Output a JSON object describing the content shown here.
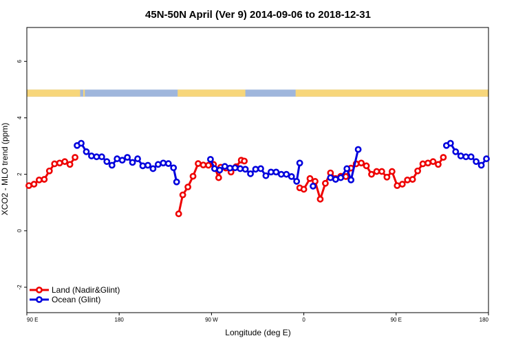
{
  "chart_data": {
    "type": "line",
    "title": "45N-50N April (Ver 9)   2014-09-06 to 2018-12-31",
    "xlabel": "Longitude (deg E)",
    "ylabel": "XCO2 - MLO trend (ppm)",
    "x_tick_labels": [
      "90 E",
      "180",
      "90 W",
      "0",
      "90 E",
      "180"
    ],
    "x_tick_values": [
      90,
      180,
      270,
      360,
      450,
      540
    ],
    "y_tick_values": [
      -2,
      0,
      2,
      4,
      6
    ],
    "y_tick_labels": [
      "-2",
      "0",
      "2",
      "4",
      "6"
    ],
    "xlim": [
      90,
      540
    ],
    "ylim": [
      -2.9,
      7.2
    ],
    "grid": false,
    "legend_position": "bottom-left",
    "colors": {
      "land": "#ee0000",
      "ocean": "#0000dd",
      "map_land": "#f7d67a",
      "map_ocean": "#9fb6dc"
    },
    "map_strip": {
      "y_range": [
        4.75,
        5.0
      ],
      "land_segments": [
        [
          90,
          142
        ],
        [
          145,
          146.5
        ],
        [
          237,
          303
        ],
        [
          352,
          540
        ]
      ]
    },
    "series": [
      {
        "name": "Land (Nadir&Glint)",
        "color": "#ee0000",
        "segments": [
          [
            [
              92,
              1.6
            ],
            [
              97,
              1.65
            ],
            [
              102,
              1.8
            ],
            [
              107,
              1.82
            ],
            [
              112,
              2.12
            ],
            [
              117,
              2.37
            ],
            [
              122,
              2.4
            ],
            [
              127,
              2.45
            ],
            [
              132,
              2.35
            ],
            [
              137,
              2.6
            ]
          ],
          [
            [
              238,
              0.6
            ],
            [
              242,
              1.27
            ],
            [
              247,
              1.55
            ],
            [
              252,
              1.93
            ],
            [
              257,
              2.38
            ],
            [
              262,
              2.33
            ],
            [
              267,
              2.32
            ],
            [
              272,
              2.35
            ],
            [
              277,
              1.88
            ],
            [
              279,
              2.25
            ],
            [
              284,
              2.22
            ],
            [
              289,
              2.08
            ],
            [
              294,
              2.27
            ],
            [
              299,
              2.5
            ],
            [
              302,
              2.47
            ]
          ],
          [
            [
              356,
              1.52
            ],
            [
              360,
              1.47
            ],
            [
              366,
              1.85
            ],
            [
              371,
              1.75
            ],
            [
              376,
              1.12
            ],
            [
              381,
              1.68
            ],
            [
              386,
              2.05
            ],
            [
              391,
              1.85
            ],
            [
              396,
              1.93
            ],
            [
              401,
              1.92
            ],
            [
              406,
              2.22
            ],
            [
              411,
              2.37
            ],
            [
              416,
              2.4
            ],
            [
              421,
              2.3
            ],
            [
              426,
              2.0
            ],
            [
              431,
              2.1
            ],
            [
              436,
              2.1
            ],
            [
              441,
              1.9
            ],
            [
              446,
              2.1
            ],
            [
              451,
              1.6
            ],
            [
              456,
              1.65
            ],
            [
              461,
              1.8
            ],
            [
              466,
              1.82
            ],
            [
              471,
              2.12
            ],
            [
              476,
              2.37
            ],
            [
              481,
              2.4
            ],
            [
              486,
              2.45
            ],
            [
              491,
              2.35
            ],
            [
              496,
              2.6
            ]
          ]
        ]
      },
      {
        "name": "Ocean (Glint)",
        "color": "#0000dd",
        "segments": [
          [
            [
              139,
              3.02
            ],
            [
              143,
              3.1
            ],
            [
              148,
              2.8
            ],
            [
              153,
              2.65
            ],
            [
              158,
              2.62
            ],
            [
              163,
              2.62
            ],
            [
              168,
              2.45
            ],
            [
              173,
              2.32
            ],
            [
              178,
              2.55
            ],
            [
              183,
              2.5
            ],
            [
              188,
              2.6
            ],
            [
              193,
              2.42
            ],
            [
              198,
              2.55
            ],
            [
              203,
              2.3
            ],
            [
              208,
              2.32
            ],
            [
              213,
              2.2
            ],
            [
              218,
              2.35
            ],
            [
              223,
              2.4
            ],
            [
              228,
              2.38
            ],
            [
              233,
              2.23
            ],
            [
              236,
              1.73
            ]
          ],
          [
            [
              269,
              2.53
            ],
            [
              273,
              2.2
            ],
            [
              278,
              2.15
            ],
            [
              283,
              2.28
            ],
            [
              288,
              2.22
            ],
            [
              293,
              2.23
            ],
            [
              298,
              2.2
            ],
            [
              303,
              2.18
            ],
            [
              308,
              2.02
            ],
            [
              313,
              2.18
            ],
            [
              318,
              2.2
            ],
            [
              323,
              1.95
            ],
            [
              328,
              2.08
            ],
            [
              333,
              2.08
            ],
            [
              338,
              2.0
            ],
            [
              343,
              2.0
            ],
            [
              348,
              1.92
            ],
            [
              353,
              1.75
            ],
            [
              356,
              2.4
            ]
          ],
          [
            [
              369,
              1.58
            ]
          ],
          [
            [
              386,
              1.88
            ],
            [
              391,
              1.82
            ],
            [
              396,
              1.88
            ],
            [
              402,
              2.2
            ],
            [
              406,
              1.8
            ],
            [
              413,
              2.88
            ]
          ],
          [
            [
              499,
              3.02
            ],
            [
              503,
              3.1
            ],
            [
              508,
              2.8
            ],
            [
              513,
              2.65
            ],
            [
              518,
              2.62
            ],
            [
              523,
              2.62
            ],
            [
              528,
              2.45
            ],
            [
              533,
              2.32
            ],
            [
              538,
              2.55
            ]
          ]
        ]
      }
    ]
  }
}
